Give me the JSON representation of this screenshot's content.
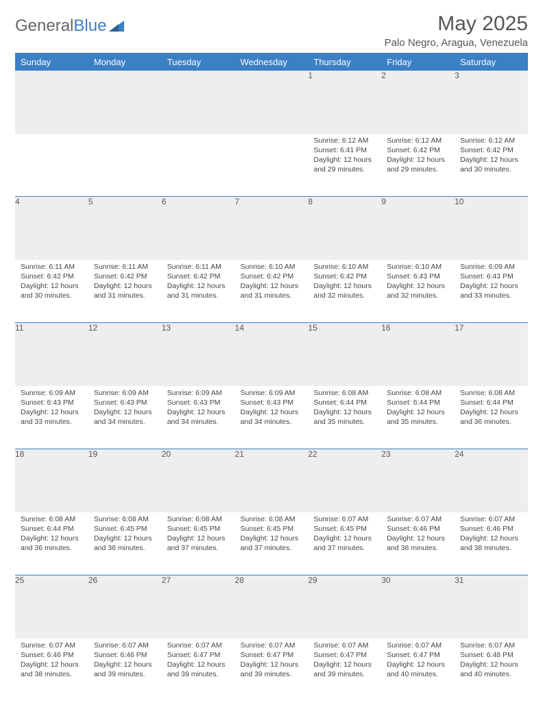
{
  "logo": {
    "text1": "General",
    "text2": "Blue"
  },
  "title": "May 2025",
  "location": "Palo Negro, Aragua, Venezuela",
  "colors": {
    "header_bg": "#3b7fc4",
    "header_text": "#ffffff",
    "daynum_bg": "#eeeeee",
    "border": "#3b7fc4",
    "body_text": "#444444",
    "title_text": "#555555"
  },
  "daysOfWeek": [
    "Sunday",
    "Monday",
    "Tuesday",
    "Wednesday",
    "Thursday",
    "Friday",
    "Saturday"
  ],
  "weeks": [
    [
      {
        "n": "",
        "text": ""
      },
      {
        "n": "",
        "text": ""
      },
      {
        "n": "",
        "text": ""
      },
      {
        "n": "",
        "text": ""
      },
      {
        "n": "1",
        "text": "Sunrise: 6:12 AM\nSunset: 6:41 PM\nDaylight: 12 hours and 29 minutes."
      },
      {
        "n": "2",
        "text": "Sunrise: 6:12 AM\nSunset: 6:42 PM\nDaylight: 12 hours and 29 minutes."
      },
      {
        "n": "3",
        "text": "Sunrise: 6:12 AM\nSunset: 6:42 PM\nDaylight: 12 hours and 30 minutes."
      }
    ],
    [
      {
        "n": "4",
        "text": "Sunrise: 6:11 AM\nSunset: 6:42 PM\nDaylight: 12 hours and 30 minutes."
      },
      {
        "n": "5",
        "text": "Sunrise: 6:11 AM\nSunset: 6:42 PM\nDaylight: 12 hours and 31 minutes."
      },
      {
        "n": "6",
        "text": "Sunrise: 6:11 AM\nSunset: 6:42 PM\nDaylight: 12 hours and 31 minutes."
      },
      {
        "n": "7",
        "text": "Sunrise: 6:10 AM\nSunset: 6:42 PM\nDaylight: 12 hours and 31 minutes."
      },
      {
        "n": "8",
        "text": "Sunrise: 6:10 AM\nSunset: 6:42 PM\nDaylight: 12 hours and 32 minutes."
      },
      {
        "n": "9",
        "text": "Sunrise: 6:10 AM\nSunset: 6:43 PM\nDaylight: 12 hours and 32 minutes."
      },
      {
        "n": "10",
        "text": "Sunrise: 6:09 AM\nSunset: 6:43 PM\nDaylight: 12 hours and 33 minutes."
      }
    ],
    [
      {
        "n": "11",
        "text": "Sunrise: 6:09 AM\nSunset: 6:43 PM\nDaylight: 12 hours and 33 minutes."
      },
      {
        "n": "12",
        "text": "Sunrise: 6:09 AM\nSunset: 6:43 PM\nDaylight: 12 hours and 34 minutes."
      },
      {
        "n": "13",
        "text": "Sunrise: 6:09 AM\nSunset: 6:43 PM\nDaylight: 12 hours and 34 minutes."
      },
      {
        "n": "14",
        "text": "Sunrise: 6:09 AM\nSunset: 6:43 PM\nDaylight: 12 hours and 34 minutes."
      },
      {
        "n": "15",
        "text": "Sunrise: 6:08 AM\nSunset: 6:44 PM\nDaylight: 12 hours and 35 minutes."
      },
      {
        "n": "16",
        "text": "Sunrise: 6:08 AM\nSunset: 6:44 PM\nDaylight: 12 hours and 35 minutes."
      },
      {
        "n": "17",
        "text": "Sunrise: 6:08 AM\nSunset: 6:44 PM\nDaylight: 12 hours and 36 minutes."
      }
    ],
    [
      {
        "n": "18",
        "text": "Sunrise: 6:08 AM\nSunset: 6:44 PM\nDaylight: 12 hours and 36 minutes."
      },
      {
        "n": "19",
        "text": "Sunrise: 6:08 AM\nSunset: 6:45 PM\nDaylight: 12 hours and 36 minutes."
      },
      {
        "n": "20",
        "text": "Sunrise: 6:08 AM\nSunset: 6:45 PM\nDaylight: 12 hours and 37 minutes."
      },
      {
        "n": "21",
        "text": "Sunrise: 6:08 AM\nSunset: 6:45 PM\nDaylight: 12 hours and 37 minutes."
      },
      {
        "n": "22",
        "text": "Sunrise: 6:07 AM\nSunset: 6:45 PM\nDaylight: 12 hours and 37 minutes."
      },
      {
        "n": "23",
        "text": "Sunrise: 6:07 AM\nSunset: 6:46 PM\nDaylight: 12 hours and 38 minutes."
      },
      {
        "n": "24",
        "text": "Sunrise: 6:07 AM\nSunset: 6:46 PM\nDaylight: 12 hours and 38 minutes."
      }
    ],
    [
      {
        "n": "25",
        "text": "Sunrise: 6:07 AM\nSunset: 6:46 PM\nDaylight: 12 hours and 38 minutes."
      },
      {
        "n": "26",
        "text": "Sunrise: 6:07 AM\nSunset: 6:46 PM\nDaylight: 12 hours and 39 minutes."
      },
      {
        "n": "27",
        "text": "Sunrise: 6:07 AM\nSunset: 6:47 PM\nDaylight: 12 hours and 39 minutes."
      },
      {
        "n": "28",
        "text": "Sunrise: 6:07 AM\nSunset: 6:47 PM\nDaylight: 12 hours and 39 minutes."
      },
      {
        "n": "29",
        "text": "Sunrise: 6:07 AM\nSunset: 6:47 PM\nDaylight: 12 hours and 39 minutes."
      },
      {
        "n": "30",
        "text": "Sunrise: 6:07 AM\nSunset: 6:47 PM\nDaylight: 12 hours and 40 minutes."
      },
      {
        "n": "31",
        "text": "Sunrise: 6:07 AM\nSunset: 6:48 PM\nDaylight: 12 hours and 40 minutes."
      }
    ]
  ]
}
